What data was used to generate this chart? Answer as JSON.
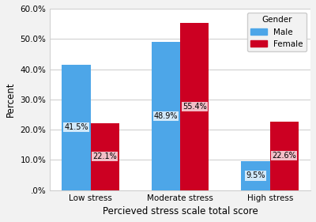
{
  "categories": [
    "Low stress",
    "Moderate stress",
    "High stress"
  ],
  "male_values": [
    41.5,
    48.9,
    9.5
  ],
  "female_values": [
    22.1,
    55.4,
    22.6
  ],
  "male_color": "#4DA6E8",
  "female_color": "#CC0022",
  "bar_width": 0.32,
  "ylim": [
    0,
    60
  ],
  "yticks": [
    0,
    10,
    20,
    30,
    40,
    50,
    60
  ],
  "ytick_labels": [
    ".0%",
    "10.0%",
    "20.0%",
    "30.0%",
    "40.0%",
    "50.0%",
    "60.0%"
  ],
  "ylabel": "Percent",
  "xlabel": "Percieved stress scale total score",
  "legend_title": "Gender",
  "legend_labels": [
    "Male",
    "Female"
  ],
  "label_fontsize": 7,
  "axis_label_fontsize": 8.5,
  "tick_fontsize": 7.5,
  "legend_fontsize": 7.5,
  "background_color": "#f2f2f2",
  "plot_bg_color": "#ffffff",
  "grid_color": "#d0d0d0"
}
